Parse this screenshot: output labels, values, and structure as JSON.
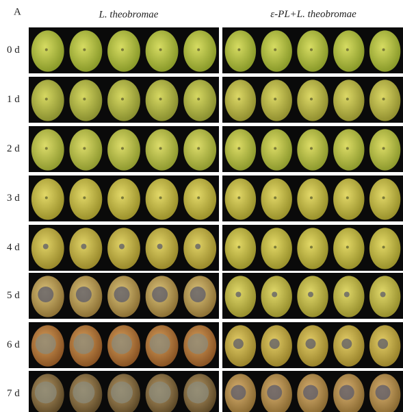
{
  "panel_label": "A",
  "columns": [
    {
      "name": "L. theobromae"
    },
    {
      "prefix": "ε-PL+",
      "name": "L. theobromae"
    }
  ],
  "rows": [
    "0 d",
    "1 d",
    "2 d",
    "3 d",
    "4 d",
    "5 d",
    "6 d",
    "7 d"
  ]
}
